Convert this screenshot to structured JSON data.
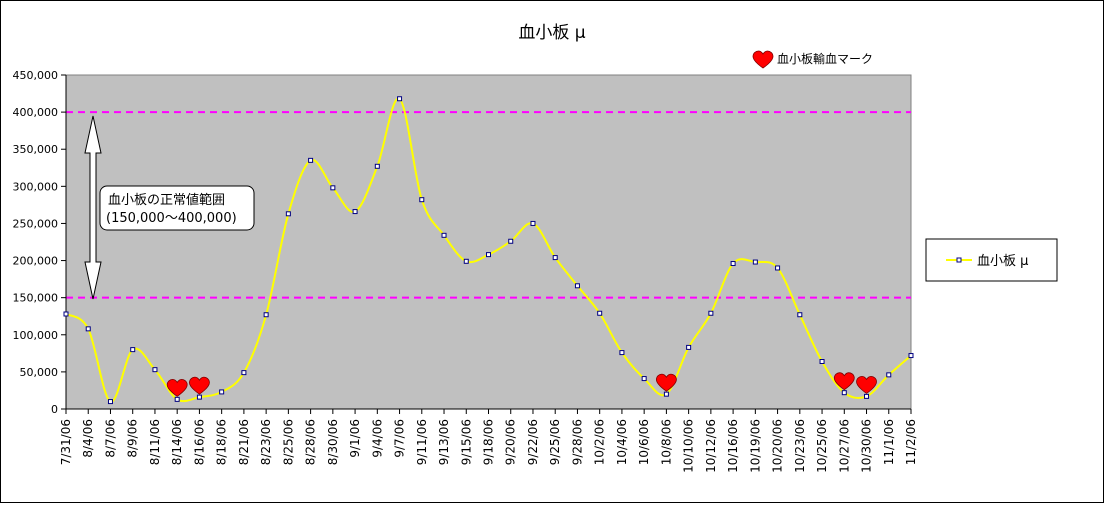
{
  "chart_data": {
    "type": "line",
    "title": "血小板 μ",
    "ylim": [
      0,
      450000
    ],
    "y_ticks": [
      0,
      50000,
      100000,
      150000,
      200000,
      250000,
      300000,
      350000,
      400000,
      450000
    ],
    "y_tick_labels": [
      "0",
      "50,000",
      "100,000",
      "150,000",
      "200,000",
      "250,000",
      "300,000",
      "350,000",
      "400,000",
      "450,000"
    ],
    "x_tick_labels": [
      "7/31/06",
      "8/4/06",
      "8/7/06",
      "8/9/06",
      "8/11/06",
      "8/14/06",
      "8/16/06",
      "8/18/06",
      "8/21/06",
      "8/23/06",
      "8/25/06",
      "8/28/06",
      "8/30/06",
      "9/1/06",
      "9/4/06",
      "9/7/06",
      "9/11/06",
      "9/13/06",
      "9/15/06",
      "9/18/06",
      "9/20/06",
      "9/22/06",
      "9/25/06",
      "9/28/06",
      "10/2/06",
      "10/4/06",
      "10/6/06",
      "10/8/06",
      "10/10/06",
      "10/12/06",
      "10/16/06",
      "10/19/06",
      "10/20/06",
      "10/23/06",
      "10/25/06",
      "10/27/06",
      "10/30/06",
      "11/1/06",
      "11/2/06"
    ],
    "series": [
      {
        "name": "血小板 μ",
        "color": "#ffff00",
        "values": [
          128000,
          108000,
          10000,
          80000,
          53000,
          13000,
          16000,
          23000,
          49000,
          127000,
          263000,
          335000,
          298000,
          266000,
          327000,
          418000,
          282000,
          234000,
          199000,
          208000,
          226000,
          250000,
          204000,
          166000,
          129000,
          76000,
          41000,
          20000,
          83000,
          129000,
          196000,
          198000,
          190000,
          127000,
          64000,
          22000,
          17000,
          46000,
          72000
        ]
      }
    ],
    "reference_lines": [
      {
        "value": 400000,
        "color": "#ff00ff"
      },
      {
        "value": 150000,
        "color": "#ff00ff"
      }
    ],
    "transfusion_marker_indices": [
      5,
      6,
      27,
      35,
      36
    ],
    "transfusion_legend_label": "血小板輸血マーク",
    "normal_range_note": [
      "血小板の正常値範囲",
      "(150,000〜400,000)"
    ],
    "legend": {
      "label": "血小板 μ",
      "placement": "right"
    },
    "plot_background": "#c0c0c0",
    "grid": false
  }
}
